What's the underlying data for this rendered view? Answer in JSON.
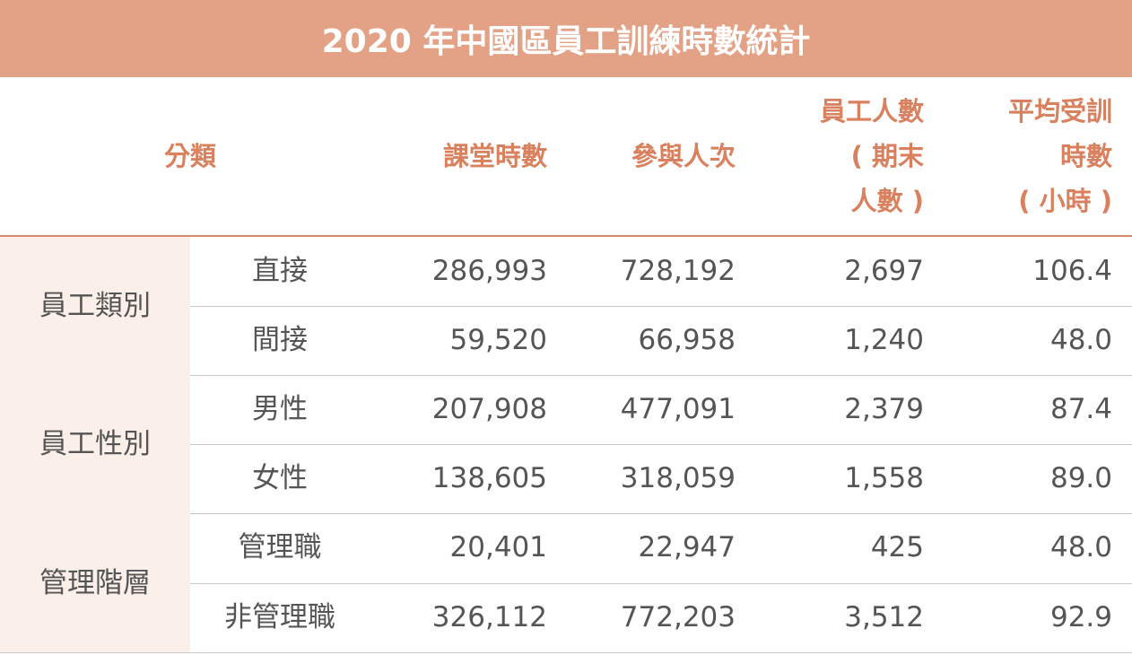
{
  "title": "2020 年中國區員工訓練時數統計",
  "table": {
    "header": {
      "category": "分類",
      "columns": [
        [
          "課堂時數"
        ],
        [
          "參與人次"
        ],
        [
          "員工人數",
          "( 期末",
          "人數 )"
        ],
        [
          "平均受訓",
          "時數",
          "( 小時 )"
        ]
      ]
    },
    "groups": [
      {
        "label": "員工類別",
        "rows": [
          {
            "name": "直接",
            "cells": [
              "286,993",
              "728,192",
              "2,697",
              "106.4"
            ]
          },
          {
            "name": "間接",
            "cells": [
              "59,520",
              "66,958",
              "1,240",
              "48.0"
            ]
          }
        ]
      },
      {
        "label": "員工性別",
        "rows": [
          {
            "name": "男性",
            "cells": [
              "207,908",
              "477,091",
              "2,379",
              "87.4"
            ]
          },
          {
            "name": "女性",
            "cells": [
              "138,605",
              "318,059",
              "1,558",
              "89.0"
            ]
          }
        ]
      },
      {
        "label": "管理階層",
        "rows": [
          {
            "name": "管理職",
            "cells": [
              "20,401",
              "22,947",
              "425",
              "48.0"
            ]
          },
          {
            "name": "非管理職",
            "cells": [
              "326,112",
              "772,203",
              "3,512",
              "92.9"
            ]
          }
        ]
      }
    ]
  }
}
